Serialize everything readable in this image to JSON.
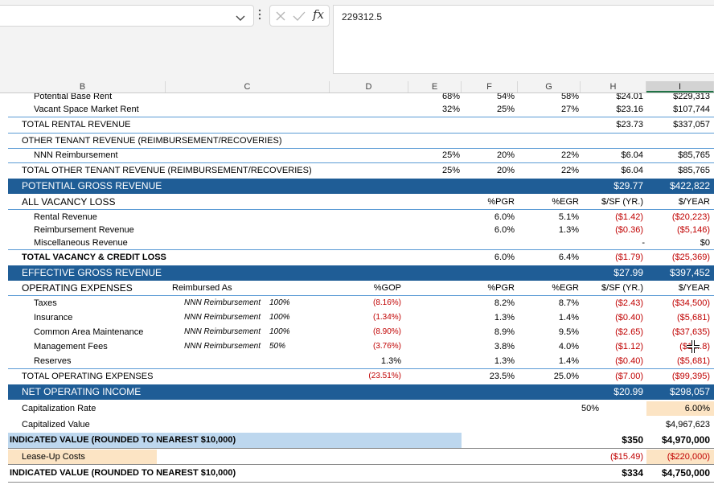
{
  "formula_bar": {
    "value": "229312.5",
    "fx": "fx"
  },
  "column_headers": [
    "B",
    "C",
    "D",
    "E",
    "F",
    "G",
    "H",
    "I"
  ],
  "rows": {
    "potential_base_rent": {
      "label": "Potential Base Rent",
      "e": "68%",
      "f": "54%",
      "g": "58%",
      "h": "$24.01",
      "i": "$229,313"
    },
    "vacant_space": {
      "label": "Vacant Space  Market Rent",
      "e": "32%",
      "f": "25%",
      "g": "27%",
      "h": "$23.16",
      "i": "$107,744"
    },
    "total_rental": {
      "label": "TOTAL RENTAL REVENUE",
      "h": "$23.73",
      "i": "$337,057"
    },
    "other_tenant": {
      "label": "OTHER TENANT REVENUE (REIMBURSEMENT/RECOVERIES)"
    },
    "nnn": {
      "label": "NNN Reimbursement",
      "e": "25%",
      "f": "20%",
      "g": "22%",
      "h": "$6.04",
      "i": "$85,765"
    },
    "total_other": {
      "label": "TOTAL OTHER TENANT REVENUE (REIMBURSEMENT/RECOVERIES)",
      "e": "25%",
      "f": "20%",
      "g": "22%",
      "h": "$6.04",
      "i": "$85,765"
    },
    "pgr": {
      "label": "POTENTIAL GROSS REVENUE",
      "h": "$29.77",
      "i": "$422,822"
    },
    "all_vacancy": {
      "label": "ALL VACANCY LOSS",
      "f": "%PGR",
      "g": "%EGR",
      "h": "$/SF (YR.)",
      "i": "$/YEAR"
    },
    "vac_rental": {
      "label": "Rental Revenue",
      "f": "6.0%",
      "g": "5.1%",
      "h": "($1.42)",
      "i": "($20,223)"
    },
    "vac_reimb": {
      "label": "Reimbursement Revenue",
      "f": "6.0%",
      "g": "1.3%",
      "h": "($0.36)",
      "i": "($5,146)"
    },
    "vac_misc": {
      "label": "Miscellaneous Revenue",
      "h": "-",
      "i": "$0"
    },
    "total_vacancy": {
      "label": "TOTAL VACANCY & CREDIT LOSS",
      "f": "6.0%",
      "g": "6.4%",
      "h": "($1.79)",
      "i": "($25,369)"
    },
    "egr": {
      "label": "EFFECTIVE GROSS REVENUE",
      "h": "$27.99",
      "i": "$397,452"
    },
    "opex_hdr": {
      "label": "OPERATING EXPENSES",
      "c": "Reimbursed As",
      "d": "%GOP",
      "f": "%PGR",
      "g": "%EGR",
      "h": "$/SF (YR.)",
      "i": "$/YEAR"
    },
    "taxes": {
      "label": "Taxes",
      "c": "NNN Reimbursement",
      "c2": "100%",
      "d": "(8.16%)",
      "f": "8.2%",
      "g": "8.7%",
      "h": "($2.43)",
      "i": "($34,500)"
    },
    "insurance": {
      "label": "Insurance",
      "c": "NNN Reimbursement",
      "c2": "100%",
      "d": "(1.34%)",
      "f": "1.3%",
      "g": "1.4%",
      "h": "($0.40)",
      "i": "($5,681)"
    },
    "cam": {
      "label": "Common Area Maintenance",
      "c": "NNN Reimbursement",
      "c2": "100%",
      "d": "(8.90%)",
      "f": "8.9%",
      "g": "9.5%",
      "h": "($2.65)",
      "i": "($37,635)"
    },
    "mgmt": {
      "label": "Management Fees",
      "c": "NNN Reimbursement",
      "c2": "50%",
      "d": "(3.76%)",
      "f": "3.8%",
      "g": "4.0%",
      "h": "($1.12)",
      "i": "($1 ...8)"
    },
    "reserves": {
      "label": "Reserves",
      "d": "1.3%",
      "f": "1.3%",
      "g": "1.4%",
      "h": "($0.40)",
      "i": "($5,681)"
    },
    "total_opex": {
      "label": "TOTAL OPERATING EXPENSES",
      "d": "(23.51%)",
      "f": "23.5%",
      "g": "25.0%",
      "h": "($7.00)",
      "i": "($99,395)"
    },
    "noi": {
      "label": "NET OPERATING INCOME",
      "h": "$20.99",
      "i": "$298,057"
    },
    "cap_rate": {
      "label": "Capitalization Rate",
      "g": "50%",
      "i": "6.00%"
    },
    "cap_value": {
      "label": "Capitalized Value",
      "i": "$4,967,623"
    },
    "indicated1": {
      "label": "INDICATED VALUE (ROUNDED TO NEAREST $10,000)",
      "h": "$350",
      "i": "$4,970,000"
    },
    "leaseup": {
      "label": "Lease-Up Costs",
      "h": "($15.49)",
      "i": "($220,000)"
    },
    "indicated2": {
      "label": "INDICATED VALUE (ROUNDED TO NEAREST $10,000)",
      "h": "$334",
      "i": "$4,750,000"
    }
  },
  "colors": {
    "band": "#1f5d96",
    "accent_line": "#5b9bd5",
    "negative": "#c00000",
    "input_fill": "#fce4c4",
    "highlight_blue": "#bdd7ee"
  }
}
